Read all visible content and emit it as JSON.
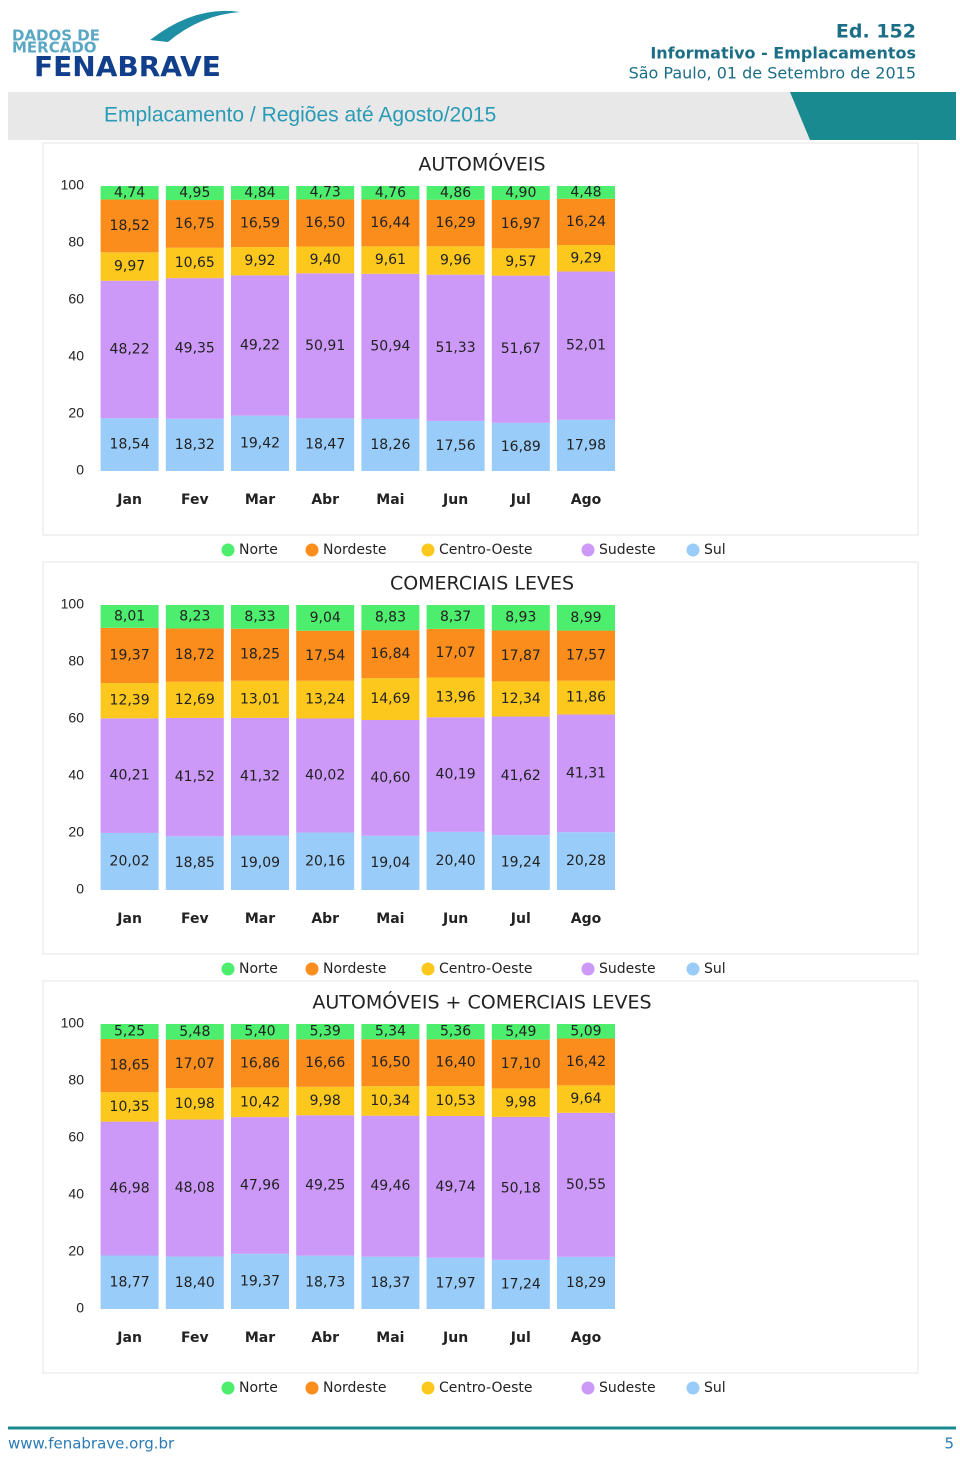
{
  "header": {
    "logo_top": "DADOS DE",
    "logo_mid": "MERCADO",
    "logo_brand": "FENABRAVE",
    "edition": "Ed. 152",
    "bulletin": "Informativo - Emplacamentos",
    "date": "São Paulo, 01 de Setembro de 2015",
    "banner": "Emplacamento / Regiões até Agosto/2015"
  },
  "chart_data": [
    {
      "type": "stacked_bar",
      "title": "AUTOMÓVEIS",
      "categories": [
        "Jan",
        "Fev",
        "Mar",
        "Abr",
        "Mai",
        "Jun",
        "Jul",
        "Ago"
      ],
      "ylim": [
        0,
        100
      ],
      "yticks": [
        0,
        20,
        40,
        60,
        80,
        100
      ],
      "legend": "bottom",
      "series": [
        {
          "name": "Norte",
          "color": "#4ded6d",
          "values": [
            4.74,
            4.95,
            4.84,
            4.73,
            4.76,
            4.86,
            4.9,
            4.48
          ],
          "value_labels": [
            "4,74",
            "4,95",
            "4,84",
            "4,73",
            "4,76",
            "4,86",
            "4,90",
            "4,48"
          ]
        },
        {
          "name": "Nordeste",
          "color": "#fb8d1d",
          "values": [
            18.52,
            16.75,
            16.59,
            16.5,
            16.44,
            16.29,
            16.97,
            16.24
          ],
          "value_labels": [
            "18,52",
            "16,75",
            "16,59",
            "16,50",
            "16,44",
            "16,29",
            "16,97",
            "16,24"
          ]
        },
        {
          "name": "Centro-Oeste",
          "color": "#fcc81d",
          "values": [
            9.97,
            10.65,
            9.92,
            9.4,
            9.61,
            9.96,
            9.57,
            9.29
          ],
          "value_labels": [
            "9,97",
            "10,65",
            "9,92",
            "9,40",
            "9,61",
            "9,96",
            "9,57",
            "9,29"
          ]
        },
        {
          "name": "Sudeste",
          "color": "#cc99f9",
          "values": [
            48.22,
            49.35,
            49.22,
            50.91,
            50.94,
            51.33,
            51.67,
            52.01
          ],
          "value_labels": [
            "48,22",
            "49,35",
            "49,22",
            "50,91",
            "50,94",
            "51,33",
            "51,67",
            "52,01"
          ]
        },
        {
          "name": "Sul",
          "color": "#99ccf9",
          "values": [
            18.54,
            18.32,
            19.42,
            18.47,
            18.26,
            17.56,
            16.89,
            17.98
          ],
          "value_labels": [
            "18,54",
            "18,32",
            "19,42",
            "18,47",
            "18,26",
            "17,56",
            "16,89",
            "17,98"
          ]
        }
      ]
    },
    {
      "type": "stacked_bar",
      "title": "COMERCIAIS LEVES",
      "categories": [
        "Jan",
        "Fev",
        "Mar",
        "Abr",
        "Mai",
        "Jun",
        "Jul",
        "Ago"
      ],
      "ylim": [
        0,
        100
      ],
      "yticks": [
        0,
        20,
        40,
        60,
        80,
        100
      ],
      "legend": "bottom",
      "series": [
        {
          "name": "Norte",
          "color": "#4ded6d",
          "values": [
            8.01,
            8.23,
            8.33,
            9.04,
            8.83,
            8.37,
            8.93,
            8.99
          ],
          "value_labels": [
            "8,01",
            "8,23",
            "8,33",
            "9,04",
            "8,83",
            "8,37",
            "8,93",
            "8,99"
          ]
        },
        {
          "name": "Nordeste",
          "color": "#fb8d1d",
          "values": [
            19.37,
            18.72,
            18.25,
            17.54,
            16.84,
            17.07,
            17.87,
            17.57
          ],
          "value_labels": [
            "19,37",
            "18,72",
            "18,25",
            "17,54",
            "16,84",
            "17,07",
            "17,87",
            "17,57"
          ]
        },
        {
          "name": "Centro-Oeste",
          "color": "#fcc81d",
          "values": [
            12.39,
            12.69,
            13.01,
            13.24,
            14.69,
            13.96,
            12.34,
            11.86
          ],
          "value_labels": [
            "12,39",
            "12,69",
            "13,01",
            "13,24",
            "14,69",
            "13,96",
            "12,34",
            "11,86"
          ]
        },
        {
          "name": "Sudeste",
          "color": "#cc99f9",
          "values": [
            40.21,
            41.52,
            41.32,
            40.02,
            40.6,
            40.19,
            41.62,
            41.31
          ],
          "value_labels": [
            "40,21",
            "41,52",
            "41,32",
            "40,02",
            "40,60",
            "40,19",
            "41,62",
            "41,31"
          ]
        },
        {
          "name": "Sul",
          "color": "#99ccf9",
          "values": [
            20.02,
            18.85,
            19.09,
            20.16,
            19.04,
            20.4,
            19.24,
            20.28
          ],
          "value_labels": [
            "20,02",
            "18,85",
            "19,09",
            "20,16",
            "19,04",
            "20,40",
            "19,24",
            "20,28"
          ]
        }
      ]
    },
    {
      "type": "stacked_bar",
      "title": "AUTOMÓVEIS + COMERCIAIS LEVES",
      "categories": [
        "Jan",
        "Fev",
        "Mar",
        "Abr",
        "Mai",
        "Jun",
        "Jul",
        "Ago"
      ],
      "ylim": [
        0,
        100
      ],
      "yticks": [
        0,
        20,
        40,
        60,
        80,
        100
      ],
      "legend": "bottom",
      "series": [
        {
          "name": "Norte",
          "color": "#4ded6d",
          "values": [
            5.25,
            5.48,
            5.4,
            5.39,
            5.34,
            5.36,
            5.49,
            5.09
          ],
          "value_labels": [
            "5,25",
            "5,48",
            "5,40",
            "5,39",
            "5,34",
            "5,36",
            "5,49",
            "5,09"
          ]
        },
        {
          "name": "Nordeste",
          "color": "#fb8d1d",
          "values": [
            18.65,
            17.07,
            16.86,
            16.66,
            16.5,
            16.4,
            17.1,
            16.42
          ],
          "value_labels": [
            "18,65",
            "17,07",
            "16,86",
            "16,66",
            "16,50",
            "16,40",
            "17,10",
            "16,42"
          ]
        },
        {
          "name": "Centro-Oeste",
          "color": "#fcc81d",
          "values": [
            10.35,
            10.98,
            10.42,
            9.98,
            10.34,
            10.53,
            9.98,
            9.64
          ],
          "value_labels": [
            "10,35",
            "10,98",
            "10,42",
            "9,98",
            "10,34",
            "10,53",
            "9,98",
            "9,64"
          ]
        },
        {
          "name": "Sudeste",
          "color": "#cc99f9",
          "values": [
            46.98,
            48.08,
            47.96,
            49.25,
            49.46,
            49.74,
            50.18,
            50.55
          ],
          "value_labels": [
            "46,98",
            "48,08",
            "47,96",
            "49,25",
            "49,46",
            "49,74",
            "50,18",
            "50,55"
          ]
        },
        {
          "name": "Sul",
          "color": "#99ccf9",
          "values": [
            18.77,
            18.4,
            19.37,
            18.73,
            18.37,
            17.97,
            17.24,
            18.29
          ],
          "value_labels": [
            "18,77",
            "18,40",
            "19,37",
            "18,73",
            "18,37",
            "17,97",
            "17,24",
            "18,29"
          ]
        }
      ]
    }
  ],
  "footer": {
    "url": "www.fenabrave.org.br",
    "page": "5"
  }
}
